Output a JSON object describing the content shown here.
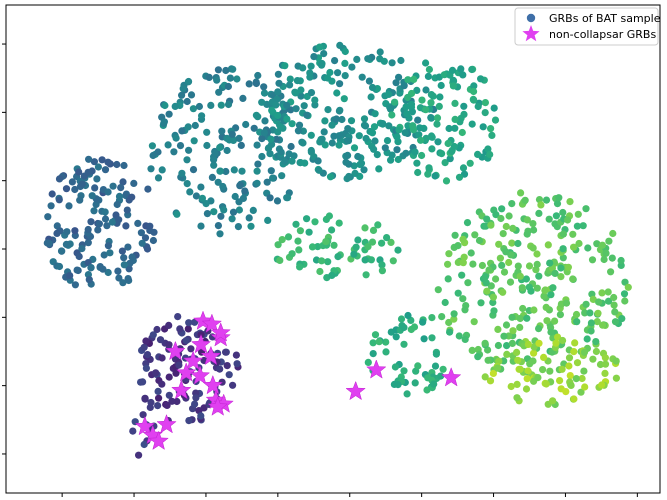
{
  "chart_data": {
    "type": "scatter",
    "title": "",
    "xlabel": "",
    "ylabel": "",
    "grid": false,
    "legend_position": "top-right",
    "xlim": [
      0,
      664
    ],
    "ylim": [
      0,
      500
    ],
    "x_ticks": [
      57,
      130,
      203,
      276,
      349,
      422,
      495,
      568,
      641
    ],
    "y_ticks": [
      40,
      110,
      180,
      250,
      320,
      390,
      460
    ],
    "colormap": "viridis",
    "legend": [
      {
        "label": "GRBs of BAT sample",
        "marker": "circle",
        "color": "#3f6fa8"
      },
      {
        "label": "non-collapsar GRBs",
        "marker": "star",
        "color": "#e040f0"
      }
    ],
    "series": [
      {
        "name": "GRBs of BAT sample",
        "marker": "circle",
        "clusters": [
          {
            "name": "left lobe",
            "cx": 95,
            "cy": 225,
            "rx": 58,
            "ry": 70,
            "n": 150,
            "color_value": 0.33
          },
          {
            "name": "top arc left",
            "cx": 225,
            "cy": 150,
            "rx": 80,
            "ry": 85,
            "n": 190,
            "color_value": 0.44
          },
          {
            "name": "top arc center",
            "cx": 345,
            "cy": 110,
            "rx": 90,
            "ry": 70,
            "n": 240,
            "color_value": 0.5
          },
          {
            "name": "top arc right",
            "cx": 445,
            "cy": 120,
            "rx": 55,
            "ry": 65,
            "n": 110,
            "color_value": 0.6
          },
          {
            "name": "mid bridge",
            "cx": 335,
            "cy": 250,
            "rx": 65,
            "ry": 35,
            "n": 65,
            "color_value": 0.66
          },
          {
            "name": "right blob",
            "cx": 535,
            "cy": 285,
            "rx": 100,
            "ry": 95,
            "n": 300,
            "color_value": 0.74
          },
          {
            "name": "right blob lower",
            "cx": 555,
            "cy": 375,
            "rx": 70,
            "ry": 35,
            "n": 80,
            "color_value": 0.84
          },
          {
            "name": "lower middle",
            "cx": 410,
            "cy": 355,
            "rx": 45,
            "ry": 45,
            "n": 55,
            "color_value": 0.62
          },
          {
            "name": "bottom left",
            "cx": 185,
            "cy": 375,
            "rx": 52,
            "ry": 58,
            "n": 120,
            "color_value": 0.16
          },
          {
            "name": "bottom left tail",
            "cx": 142,
            "cy": 438,
            "rx": 14,
            "ry": 28,
            "n": 12,
            "color_value": 0.2
          }
        ]
      },
      {
        "name": "non-collapsar GRBs",
        "marker": "star",
        "color": "#e040f0",
        "points": [
          [
            200,
            324
          ],
          [
            209,
            327
          ],
          [
            218,
            341
          ],
          [
            218,
            336
          ],
          [
            198,
            348
          ],
          [
            172,
            355
          ],
          [
            208,
            360
          ],
          [
            190,
            365
          ],
          [
            183,
            377
          ],
          [
            197,
            380
          ],
          [
            178,
            395
          ],
          [
            210,
            390
          ],
          [
            213,
            405
          ],
          [
            221,
            409
          ],
          [
            215,
            412
          ],
          [
            141,
            432
          ],
          [
            163,
            430
          ],
          [
            149,
            441
          ],
          [
            155,
            447
          ],
          [
            376,
            374
          ],
          [
            355,
            396
          ],
          [
            452,
            382
          ]
        ]
      }
    ]
  }
}
